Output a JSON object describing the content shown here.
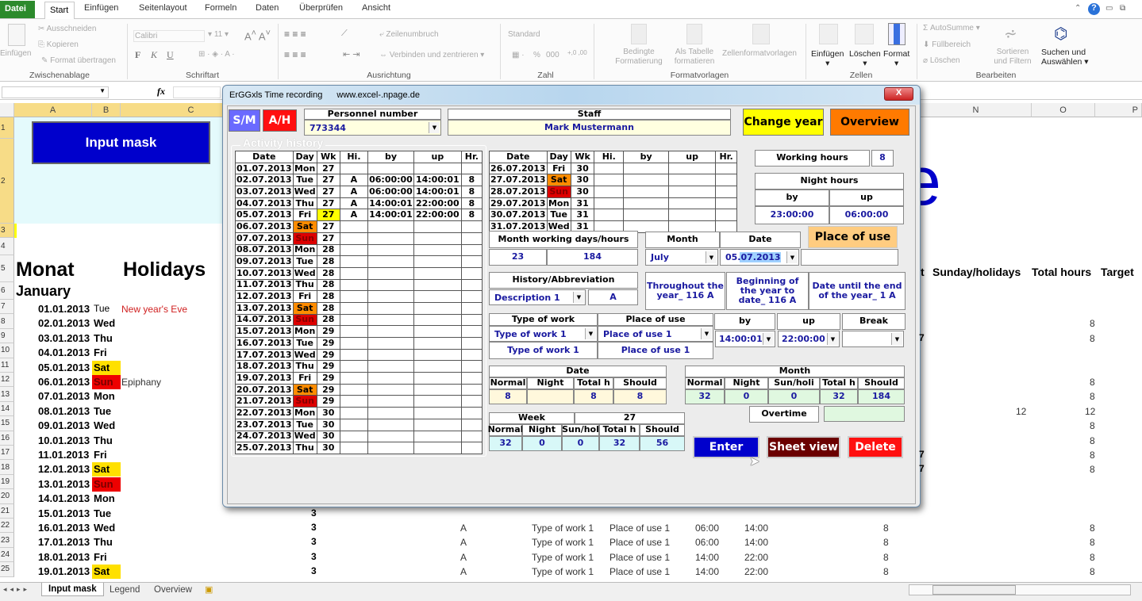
{
  "ribbon": {
    "tabs": [
      "Datei",
      "Start",
      "Einfügen",
      "Seitenlayout",
      "Formeln",
      "Daten",
      "Überprüfen",
      "Ansicht"
    ],
    "clipboard": {
      "paste": "Einfügen",
      "cut": "Ausschneiden",
      "copy": "Kopieren",
      "format_painter": "Format übertragen",
      "group": "Zwischenablage"
    },
    "font": {
      "name": "Calibri",
      "size": "11",
      "bold": "F",
      "italic": "K",
      "underline": "U",
      "group": "Schriftart"
    },
    "alignment": {
      "wrap": "Zeilenumbruch",
      "merge": "Verbinden und zentrieren",
      "group": "Ausrichtung"
    },
    "number": {
      "format": "Standard",
      "percent": "%",
      "thousands": "000",
      "group": "Zahl"
    },
    "styles": {
      "conditional": "Bedingte Formatierung",
      "table": "Als Tabelle formatieren",
      "cell_styles": "Zellenformatvorlagen",
      "group": "Formatvorlagen"
    },
    "cells": {
      "insert": "Einfügen",
      "delete": "Löschen",
      "format": "Format",
      "group": "Zellen"
    },
    "editing": {
      "autosum": "AutoSumme",
      "fill": "Füllbereich",
      "clear": "Löschen",
      "sort": "Sortieren und Filtern",
      "find": "Suchen und Auswählen",
      "group": "Bearbeiten"
    }
  },
  "formula_bar": {
    "fx": "fx"
  },
  "columns": [
    "A",
    "B",
    "C",
    "N",
    "O",
    "P"
  ],
  "sheet": {
    "input_mask_button": "Input mask",
    "title_fragment": "e",
    "headers": {
      "monat": "Monat",
      "holidays": "Holidays",
      "t": "t",
      "sunday": "Sunday/holidays",
      "total": "Total hours",
      "target": "Target"
    },
    "month": "January",
    "rows": [
      {
        "r": 7,
        "date": "01.01.2013",
        "day": "Tue",
        "holiday": "New year's Eve"
      },
      {
        "r": 8,
        "date": "02.01.2013",
        "day": "Wed",
        "o": "8"
      },
      {
        "r": 9,
        "date": "03.01.2013",
        "day": "Thu",
        "m": "7",
        "o": "8"
      },
      {
        "r": 10,
        "date": "04.01.2013",
        "day": "Fri"
      },
      {
        "r": 11,
        "date": "05.01.2013",
        "day": "Sat"
      },
      {
        "r": 12,
        "date": "06.01.2013",
        "day": "Sun",
        "holiday": "Epiphany",
        "o": "8"
      },
      {
        "r": 13,
        "date": "07.01.2013",
        "day": "Mon",
        "o": "8"
      },
      {
        "r": 14,
        "date": "08.01.2013",
        "day": "Tue",
        "n": "12",
        "o": "12"
      },
      {
        "r": 15,
        "date": "09.01.2013",
        "day": "Wed",
        "o": "8"
      },
      {
        "r": 16,
        "date": "10.01.2013",
        "day": "Thu",
        "o": "8"
      },
      {
        "r": 17,
        "date": "11.01.2013",
        "day": "Fri",
        "m": "7",
        "o": "8"
      },
      {
        "r": 18,
        "date": "12.01.2013",
        "day": "Sat",
        "m": "7",
        "o": "8"
      },
      {
        "r": 19,
        "date": "13.01.2013",
        "day": "Sun"
      },
      {
        "r": 20,
        "date": "14.01.2013",
        "day": "Mon"
      },
      {
        "r": 21,
        "date": "15.01.2013",
        "day": "Tue",
        "wk": "3"
      },
      {
        "r": 22,
        "date": "16.01.2013",
        "day": "Wed",
        "wk": "3",
        "hi": "A",
        "type": "Type of work 1",
        "place": "Place of use 1",
        "by": "06:00",
        "up": "14:00",
        "h": "8",
        "o": "8"
      },
      {
        "r": 23,
        "date": "17.01.2013",
        "day": "Thu",
        "wk": "3",
        "hi": "A",
        "type": "Type of work 1",
        "place": "Place of use 1",
        "by": "06:00",
        "up": "14:00",
        "h": "8",
        "o": "8"
      },
      {
        "r": 24,
        "date": "18.01.2013",
        "day": "Fri",
        "wk": "3",
        "hi": "A",
        "type": "Type of work 1",
        "place": "Place of use 1",
        "by": "14:00",
        "up": "22:00",
        "h": "8",
        "o": "8"
      },
      {
        "r": 25,
        "date": "19.01.2013",
        "day": "Sat",
        "wk": "3",
        "hi": "A",
        "type": "Type of work 1",
        "place": "Place of use 1",
        "by": "14:00",
        "up": "22:00",
        "h": "8",
        "o": "8"
      }
    ],
    "sheet_tabs": [
      "Input mask",
      "Legend",
      "Overview"
    ]
  },
  "dialog": {
    "title": "ErGGxls  Time recording",
    "url": "www.excel-.npage.de",
    "close": "X",
    "sm": "S/M",
    "ah": "A/H",
    "personnel_label": "Personnel number",
    "personnel_value": "773344",
    "staff_label": "Staff",
    "staff_value": "Mark Mustermann",
    "change_year": "Change year",
    "overview": "Overview",
    "activity_history": "Activity history",
    "table_headers": [
      "Date",
      "Day",
      "Wk",
      "Hi.",
      "by",
      "up",
      "Hr."
    ],
    "history_left": [
      [
        "01.07.2013",
        "Mon",
        "27",
        "",
        "",
        "",
        ""
      ],
      [
        "02.07.2013",
        "Tue",
        "27",
        "A",
        "06:00:00",
        "14:00:01",
        "8"
      ],
      [
        "03.07.2013",
        "Wed",
        "27",
        "A",
        "06:00:00",
        "14:00:01",
        "8"
      ],
      [
        "04.07.2013",
        "Thu",
        "27",
        "A",
        "14:00:01",
        "22:00:00",
        "8"
      ],
      [
        "05.07.2013",
        "Fri",
        "27",
        "A",
        "14:00:01",
        "22:00:00",
        "8"
      ],
      [
        "06.07.2013",
        "Sat",
        "27",
        "",
        "",
        "",
        ""
      ],
      [
        "07.07.2013",
        "Sun",
        "27",
        "",
        "",
        "",
        ""
      ],
      [
        "08.07.2013",
        "Mon",
        "28",
        "",
        "",
        "",
        ""
      ],
      [
        "09.07.2013",
        "Tue",
        "28",
        "",
        "",
        "",
        ""
      ],
      [
        "10.07.2013",
        "Wed",
        "28",
        "",
        "",
        "",
        ""
      ],
      [
        "11.07.2013",
        "Thu",
        "28",
        "",
        "",
        "",
        ""
      ],
      [
        "12.07.2013",
        "Fri",
        "28",
        "",
        "",
        "",
        ""
      ],
      [
        "13.07.2013",
        "Sat",
        "28",
        "",
        "",
        "",
        ""
      ],
      [
        "14.07.2013",
        "Sun",
        "28",
        "",
        "",
        "",
        ""
      ],
      [
        "15.07.2013",
        "Mon",
        "29",
        "",
        "",
        "",
        ""
      ],
      [
        "16.07.2013",
        "Tue",
        "29",
        "",
        "",
        "",
        ""
      ],
      [
        "17.07.2013",
        "Wed",
        "29",
        "",
        "",
        "",
        ""
      ],
      [
        "18.07.2013",
        "Thu",
        "29",
        "",
        "",
        "",
        ""
      ],
      [
        "19.07.2013",
        "Fri",
        "29",
        "",
        "",
        "",
        ""
      ],
      [
        "20.07.2013",
        "Sat",
        "29",
        "",
        "",
        "",
        ""
      ],
      [
        "21.07.2013",
        "Sun",
        "29",
        "",
        "",
        "",
        ""
      ],
      [
        "22.07.2013",
        "Mon",
        "30",
        "",
        "",
        "",
        ""
      ],
      [
        "23.07.2013",
        "Tue",
        "30",
        "",
        "",
        "",
        ""
      ],
      [
        "24.07.2013",
        "Wed",
        "30",
        "",
        "",
        "",
        ""
      ],
      [
        "25.07.2013",
        "Thu",
        "30",
        "",
        "",
        "",
        ""
      ]
    ],
    "history_right": [
      [
        "26.07.2013",
        "Fri",
        "30",
        "",
        "",
        "",
        ""
      ],
      [
        "27.07.2013",
        "Sat",
        "30",
        "",
        "",
        "",
        ""
      ],
      [
        "28.07.2013",
        "Sun",
        "30",
        "",
        "",
        "",
        ""
      ],
      [
        "29.07.2013",
        "Mon",
        "31",
        "",
        "",
        "",
        ""
      ],
      [
        "30.07.2013",
        "Tue",
        "31",
        "",
        "",
        "",
        ""
      ],
      [
        "31.07.2013",
        "Wed",
        "31",
        "",
        "",
        "",
        ""
      ]
    ],
    "selected_date": "05.07.2013",
    "working_hours_label": "Working hours",
    "working_hours": "8",
    "night_hours_label": "Night hours",
    "night_by_label": "by",
    "night_up_label": "up",
    "night_by": "23:00:00",
    "night_up": "06:00:00",
    "month_days_label": "Month working days/hours",
    "month_days": "23",
    "month_hours": "184",
    "month_label": "Month",
    "month_value": "July",
    "date_label": "Date",
    "date_value": "05.07.2013",
    "place_of_use_button": "Place of use",
    "history_abbr_label": "History/Abbreviation",
    "description": "Description 1",
    "abbr": "A",
    "throughout": "Throughout the year_ 116 A",
    "begin_to_date": "Beginning of the year to date_ 116 A",
    "until_end": "Date until the end of the year_ 1 A",
    "type_label": "Type of work",
    "type_value": "Type of work 1",
    "type_text": "Type of work 1",
    "place_label": "Place of use",
    "place_value": "Place of use 1",
    "place_text": "Place of use 1",
    "by_label": "by",
    "by_value": "14:00:01",
    "up_label": "up",
    "up_value": "22:00:00",
    "break_label": "Break",
    "break_value": "",
    "date_group": {
      "label": "Date",
      "headers": [
        "Normal",
        "Night",
        "Total h",
        "Should"
      ],
      "values": [
        "8",
        "",
        "8",
        "8"
      ]
    },
    "month_group": {
      "label": "Month",
      "headers": [
        "Normal",
        "Night",
        "Sun/holi",
        "Total h",
        "Should"
      ],
      "values": [
        "32",
        "0",
        "0",
        "32",
        "184"
      ]
    },
    "overtime_label": "Overtime",
    "overtime_value": "",
    "week_group": {
      "label": "Week",
      "week": "27",
      "headers": [
        "Normal",
        "Night",
        "Sun/hol",
        "Total h",
        "Should"
      ],
      "values": [
        "32",
        "0",
        "0",
        "32",
        "56"
      ]
    },
    "enter": "Enter",
    "sheet_view": "Sheet view",
    "delete": "Delete"
  },
  "colors": {
    "sat": "#ff8c00",
    "sun": "#dd0000",
    "sheet_sat": "#ffe000",
    "sheet_sun": "#ee0000",
    "blue_button": "#0000cc",
    "dark_red": "#6b0000",
    "red": "#ff1010",
    "yellow": "#ffff00",
    "orange": "#ff7a00",
    "peach": "#ffcc80"
  }
}
